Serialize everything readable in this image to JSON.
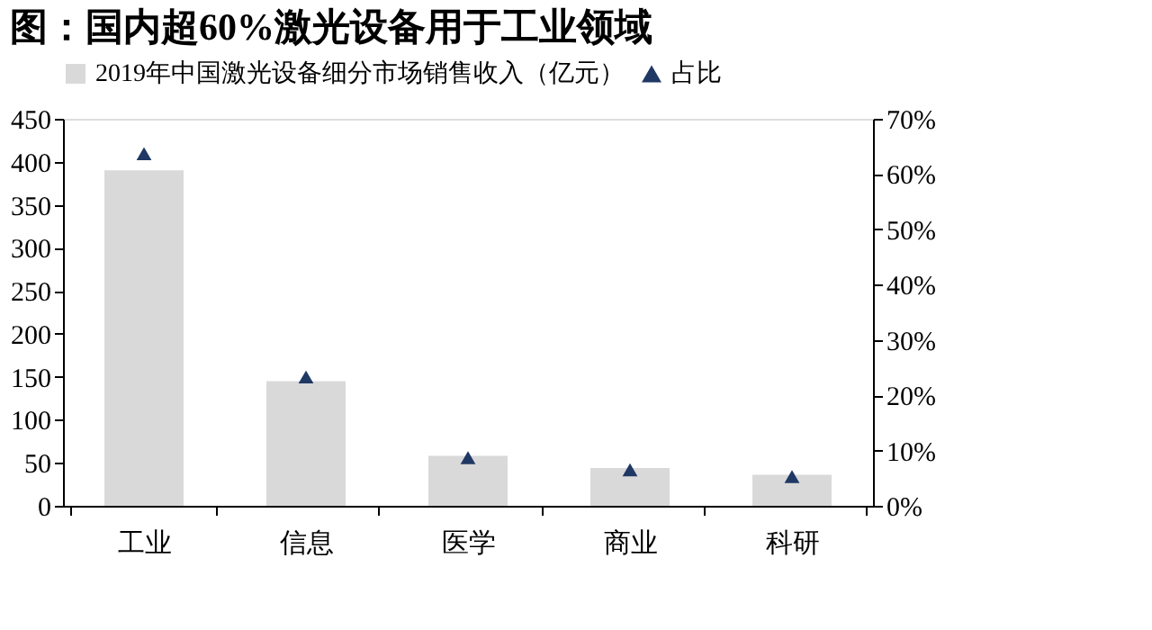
{
  "chart_data": {
    "type": "bar",
    "title": "图：国内超60%激光设备用于工业领域",
    "categories": [
      "工业",
      "信息",
      "医学",
      "商业",
      "科研"
    ],
    "series": [
      {
        "name": "2019年中国激光设备细分市场销售收入（亿元）",
        "color": "#d9d9d9",
        "values": [
          390,
          145,
          58,
          44,
          36
        ]
      },
      {
        "name": "占比",
        "type": "scatter",
        "axis": "y2",
        "marker": "triangle",
        "color": "#1f3864",
        "values": [
          63.7,
          23.3,
          8.7,
          6.5,
          5.3
        ]
      }
    ],
    "ylim": [
      0,
      450
    ],
    "yticks": [
      0,
      50,
      100,
      150,
      200,
      250,
      300,
      350,
      400,
      450
    ],
    "y2lim": [
      0,
      70
    ],
    "y2ticks": [
      {
        "value": 0,
        "label": "0%"
      },
      {
        "value": 10,
        "label": "10%"
      },
      {
        "value": 20,
        "label": "20%"
      },
      {
        "value": 30,
        "label": "30%"
      },
      {
        "value": 40,
        "label": "40%"
      },
      {
        "value": 50,
        "label": "50%"
      },
      {
        "value": 60,
        "label": "60%"
      },
      {
        "value": 70,
        "label": "70%"
      }
    ],
    "grid": false,
    "legend": "top"
  }
}
